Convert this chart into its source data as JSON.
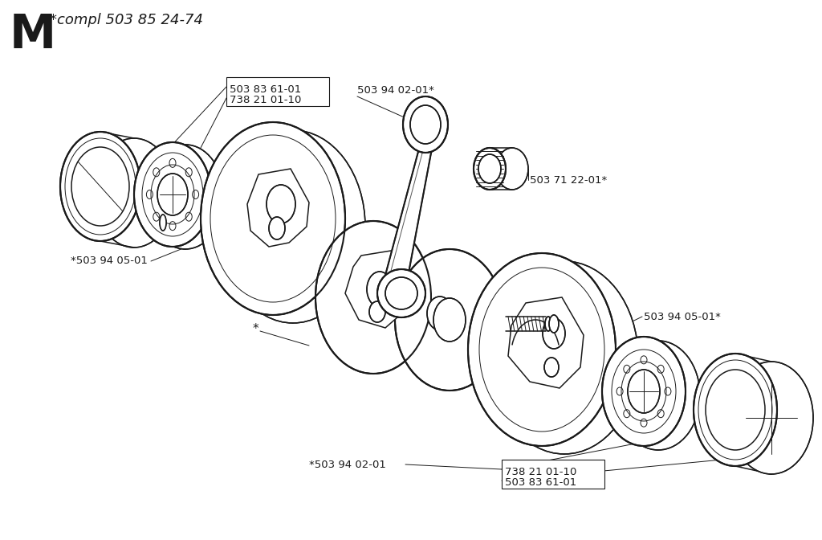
{
  "title_letter": "M",
  "title_text": "*compl 503 85 24-74",
  "background_color": "#ffffff",
  "line_color": "#1a1a1a",
  "label_color": "#1a1a1a",
  "labels": {
    "top_left_box_line1": "503 83 61-01",
    "top_left_box_line2": "738 21 01-10",
    "top_right": "503 94 02-01*",
    "right_mid": "503 71 22-01*",
    "left_mid": "*503 94 05-01",
    "center_star": "*",
    "right_disk": "503 94 05-01*",
    "bottom_box_line1": "738 21 01-10",
    "bottom_box_line2": "503 83 61-01",
    "bottom_left": "*503 94 02-01"
  },
  "figsize": [
    10.24,
    6.72
  ],
  "dpi": 100
}
